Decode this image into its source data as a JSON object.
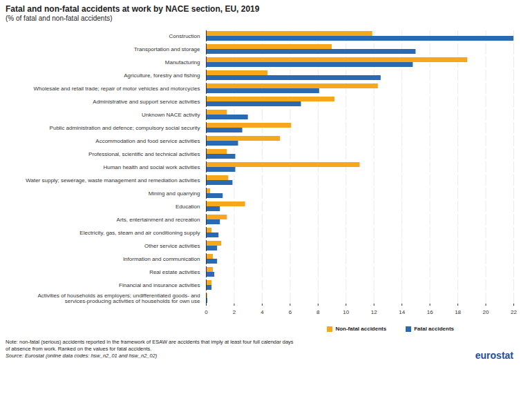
{
  "chart_data": {
    "type": "bar",
    "orientation": "horizontal",
    "title": "Fatal and non-fatal accidents at work by NACE section, EU, 2019",
    "subtitle": "(% of fatal and non-fatal accidents)",
    "categories": [
      "Construction",
      "Transportation and storage",
      "Manufacturing",
      "Agriculture, forestry and fishing",
      "Wholesale and retail trade; repair of motor vehicles and motorcycles",
      "Administrative and support service activities",
      "Unknown NACE activity",
      "Public administration and defence; compulsory social security",
      "Accommodation and food service activities",
      "Professional, scientific and technical activities",
      "Human health and social work activities",
      "Water supply; sewerage, waste management and remediation activities",
      "Mining and quarrying",
      "Education",
      "Arts, entertainment and recreation",
      "Electricity, gas, steam and air conditioning supply",
      "Other service activities",
      "Information and communication",
      "Real estate activities",
      "Financial and insurance activities",
      "Activities of households as employers; undifferentiated goods- and services-producing activities of households for own use"
    ],
    "series": [
      {
        "name": "Non-fatal accidents",
        "color": "#f6a81c",
        "values": [
          11.9,
          9.0,
          18.7,
          4.4,
          12.3,
          9.2,
          1.5,
          6.1,
          5.3,
          1.5,
          11.0,
          1.6,
          0.3,
          2.8,
          1.5,
          0.4,
          1.1,
          0.5,
          0.5,
          0.4,
          0.1
        ]
      },
      {
        "name": "Fatal accidents",
        "color": "#2a6ab3",
        "values": [
          22.0,
          15.0,
          14.8,
          12.5,
          8.1,
          6.8,
          3.0,
          2.6,
          2.3,
          2.1,
          2.1,
          1.9,
          1.2,
          1.0,
          1.0,
          0.9,
          0.8,
          0.8,
          0.6,
          0.4,
          0.1
        ]
      }
    ],
    "xlim": [
      0,
      22
    ],
    "xticks": [
      0,
      2,
      4,
      6,
      8,
      10,
      12,
      14,
      16,
      18,
      20,
      22
    ],
    "grid": true,
    "legend": "bottom-right",
    "note": "Note: non-fatal (serious) accidents reported in the framework of ESAW are accidents that imply at least four full calendar days of absence from work. Ranked on the values for fatal accidents.",
    "source": "Source: Eurostat (online data codes: hsw_n2_01 and hsw_n2_02)",
    "logo": "eurostat"
  }
}
